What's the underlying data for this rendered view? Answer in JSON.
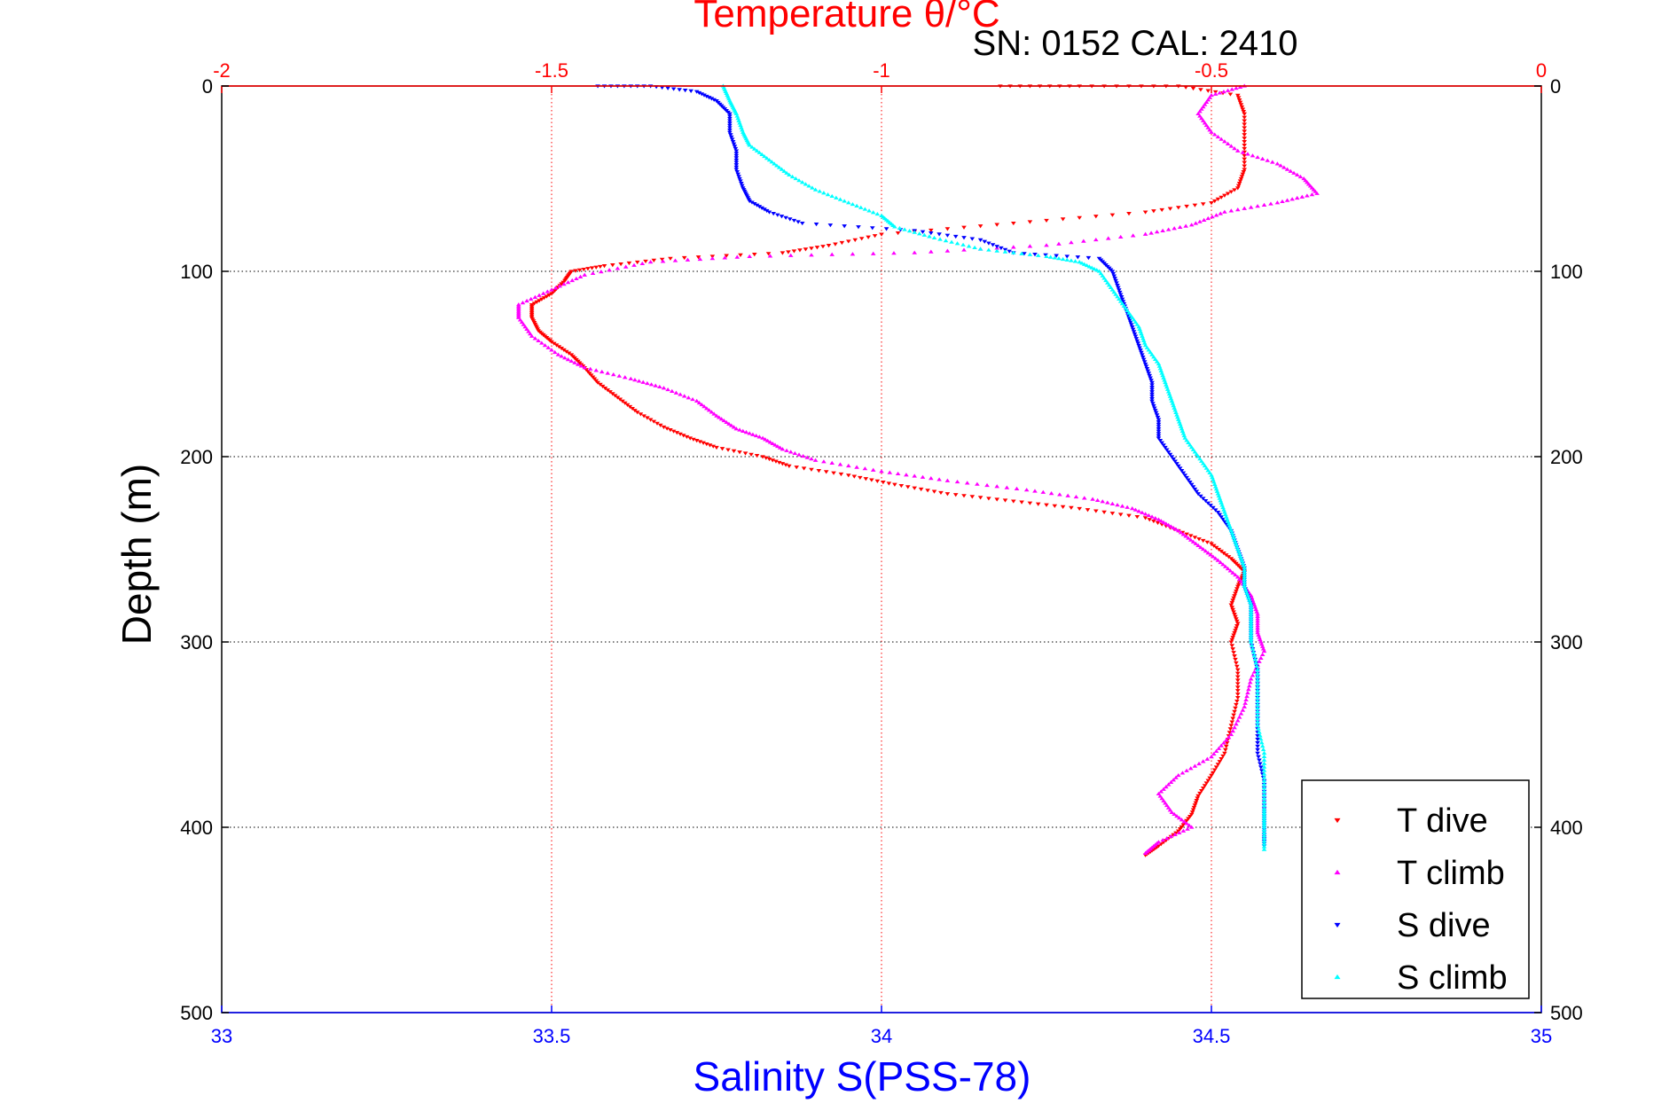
{
  "chart_data": {
    "type": "scatter",
    "title": "Temperature θ/°C",
    "subtitle": "SN: 0152  CAL: 2410",
    "xlabel": "Salinity S(PSS-78)",
    "ylabel": "Depth (m)",
    "x_bottom": {
      "label": "Salinity S(PSS-78)",
      "range": [
        33,
        35
      ],
      "ticks": [
        "33",
        "33.5",
        "34",
        "34.5",
        "35"
      ],
      "color": "#0000ff"
    },
    "x_top": {
      "label": "Temperature θ/°C",
      "range": [
        -2,
        0
      ],
      "ticks": [
        "-2",
        "-1.5",
        "-1",
        "-0.5",
        "0"
      ],
      "color": "#ff0000"
    },
    "y": {
      "label": "Depth (m)",
      "range": [
        0,
        500
      ],
      "reversed": true,
      "ticks": [
        "0",
        "100",
        "200",
        "300",
        "400",
        "500"
      ]
    },
    "grid": true,
    "legend_position": "bottom-right",
    "series": [
      {
        "name": "T dive",
        "axis": "top",
        "color": "#ff0000",
        "marker": "triangle-down",
        "points": [
          [
            -0.82,
            0
          ],
          [
            -0.7,
            0
          ],
          [
            -0.55,
            0
          ],
          [
            -0.46,
            5
          ],
          [
            -0.45,
            15
          ],
          [
            -0.45,
            30
          ],
          [
            -0.45,
            45
          ],
          [
            -0.46,
            55
          ],
          [
            -0.5,
            63
          ],
          [
            -0.6,
            68
          ],
          [
            -0.8,
            74
          ],
          [
            -1.0,
            80
          ],
          [
            -1.08,
            86
          ],
          [
            -1.15,
            90
          ],
          [
            -1.32,
            93
          ],
          [
            -1.42,
            97
          ],
          [
            -1.47,
            100
          ],
          [
            -1.48,
            105
          ],
          [
            -1.5,
            112
          ],
          [
            -1.53,
            118
          ],
          [
            -1.53,
            125
          ],
          [
            -1.52,
            132
          ],
          [
            -1.5,
            138
          ],
          [
            -1.47,
            145
          ],
          [
            -1.45,
            152
          ],
          [
            -1.43,
            160
          ],
          [
            -1.4,
            168
          ],
          [
            -1.37,
            176
          ],
          [
            -1.33,
            184
          ],
          [
            -1.29,
            190
          ],
          [
            -1.25,
            195
          ],
          [
            -1.18,
            200
          ],
          [
            -1.14,
            205
          ],
          [
            -1.05,
            210
          ],
          [
            -0.98,
            215
          ],
          [
            -0.9,
            220
          ],
          [
            -0.8,
            224
          ],
          [
            -0.7,
            228
          ],
          [
            -0.6,
            233
          ],
          [
            -0.55,
            240
          ],
          [
            -0.5,
            247
          ],
          [
            -0.47,
            255
          ],
          [
            -0.45,
            262
          ],
          [
            -0.46,
            270
          ],
          [
            -0.47,
            280
          ],
          [
            -0.46,
            290
          ],
          [
            -0.47,
            300
          ],
          [
            -0.46,
            315
          ],
          [
            -0.46,
            330
          ],
          [
            -0.47,
            345
          ],
          [
            -0.48,
            360
          ],
          [
            -0.5,
            372
          ],
          [
            -0.52,
            383
          ],
          [
            -0.53,
            393
          ],
          [
            -0.55,
            402
          ],
          [
            -0.58,
            410
          ],
          [
            -0.6,
            415
          ]
        ]
      },
      {
        "name": "T climb",
        "axis": "top",
        "color": "#ff00ff",
        "marker": "triangle-up",
        "points": [
          [
            -0.45,
            0
          ],
          [
            -0.5,
            5
          ],
          [
            -0.52,
            15
          ],
          [
            -0.5,
            25
          ],
          [
            -0.46,
            35
          ],
          [
            -0.4,
            42
          ],
          [
            -0.36,
            50
          ],
          [
            -0.34,
            58
          ],
          [
            -0.4,
            63
          ],
          [
            -0.48,
            68
          ],
          [
            -0.53,
            75
          ],
          [
            -0.6,
            80
          ],
          [
            -0.75,
            86
          ],
          [
            -0.95,
            90
          ],
          [
            -1.2,
            92
          ],
          [
            -1.35,
            95
          ],
          [
            -1.45,
            102
          ],
          [
            -1.5,
            110
          ],
          [
            -1.55,
            118
          ],
          [
            -1.55,
            125
          ],
          [
            -1.53,
            135
          ],
          [
            -1.49,
            145
          ],
          [
            -1.45,
            152
          ],
          [
            -1.38,
            158
          ],
          [
            -1.33,
            163
          ],
          [
            -1.28,
            170
          ],
          [
            -1.25,
            178
          ],
          [
            -1.22,
            185
          ],
          [
            -1.18,
            190
          ],
          [
            -1.15,
            196
          ],
          [
            -1.1,
            202
          ],
          [
            -1.0,
            208
          ],
          [
            -0.9,
            213
          ],
          [
            -0.78,
            218
          ],
          [
            -0.68,
            223
          ],
          [
            -0.62,
            228
          ],
          [
            -0.58,
            234
          ],
          [
            -0.55,
            240
          ],
          [
            -0.52,
            248
          ],
          [
            -0.49,
            256
          ],
          [
            -0.46,
            265
          ],
          [
            -0.44,
            275
          ],
          [
            -0.43,
            285
          ],
          [
            -0.43,
            295
          ],
          [
            -0.42,
            305
          ],
          [
            -0.44,
            320
          ],
          [
            -0.45,
            335
          ],
          [
            -0.47,
            350
          ],
          [
            -0.5,
            362
          ],
          [
            -0.55,
            372
          ],
          [
            -0.58,
            382
          ],
          [
            -0.56,
            392
          ],
          [
            -0.53,
            400
          ],
          [
            -0.58,
            408
          ],
          [
            -0.6,
            414
          ]
        ]
      },
      {
        "name": "S dive",
        "axis": "bottom",
        "color": "#0000ff",
        "marker": "triangle-down",
        "points": [
          [
            33.57,
            0
          ],
          [
            33.65,
            0
          ],
          [
            33.72,
            3
          ],
          [
            33.75,
            8
          ],
          [
            33.77,
            15
          ],
          [
            33.77,
            25
          ],
          [
            33.78,
            35
          ],
          [
            33.78,
            45
          ],
          [
            33.79,
            55
          ],
          [
            33.8,
            62
          ],
          [
            33.83,
            68
          ],
          [
            33.88,
            74
          ],
          [
            34.05,
            78
          ],
          [
            34.15,
            83
          ],
          [
            34.2,
            90
          ],
          [
            34.33,
            93
          ],
          [
            34.35,
            100
          ],
          [
            34.36,
            110
          ],
          [
            34.37,
            120
          ],
          [
            34.38,
            130
          ],
          [
            34.39,
            140
          ],
          [
            34.4,
            150
          ],
          [
            34.41,
            160
          ],
          [
            34.41,
            170
          ],
          [
            34.42,
            180
          ],
          [
            34.42,
            190
          ],
          [
            34.44,
            200
          ],
          [
            34.46,
            210
          ],
          [
            34.48,
            220
          ],
          [
            34.51,
            230
          ],
          [
            34.53,
            240
          ],
          [
            34.54,
            250
          ],
          [
            34.55,
            260
          ],
          [
            34.55,
            270
          ],
          [
            34.56,
            280
          ],
          [
            34.56,
            290
          ],
          [
            34.56,
            300
          ],
          [
            34.57,
            315
          ],
          [
            34.57,
            330
          ],
          [
            34.57,
            345
          ],
          [
            34.57,
            360
          ],
          [
            34.58,
            375
          ],
          [
            34.58,
            390
          ],
          [
            34.58,
            400
          ],
          [
            34.58,
            410
          ]
        ]
      },
      {
        "name": "S climb",
        "axis": "bottom",
        "color": "#00ffff",
        "marker": "triangle-up",
        "points": [
          [
            33.76,
            0
          ],
          [
            33.77,
            8
          ],
          [
            33.78,
            15
          ],
          [
            33.79,
            25
          ],
          [
            33.8,
            32
          ],
          [
            33.83,
            40
          ],
          [
            33.86,
            48
          ],
          [
            33.9,
            56
          ],
          [
            33.95,
            63
          ],
          [
            34.0,
            70
          ],
          [
            34.02,
            76
          ],
          [
            34.08,
            82
          ],
          [
            34.15,
            88
          ],
          [
            34.25,
            92
          ],
          [
            34.3,
            95
          ],
          [
            34.33,
            100
          ],
          [
            34.35,
            110
          ],
          [
            34.37,
            120
          ],
          [
            34.39,
            130
          ],
          [
            34.4,
            140
          ],
          [
            34.42,
            150
          ],
          [
            34.43,
            160
          ],
          [
            34.44,
            170
          ],
          [
            34.45,
            180
          ],
          [
            34.46,
            190
          ],
          [
            34.48,
            200
          ],
          [
            34.5,
            210
          ],
          [
            34.51,
            220
          ],
          [
            34.52,
            230
          ],
          [
            34.53,
            240
          ],
          [
            34.54,
            250
          ],
          [
            34.55,
            260
          ],
          [
            34.55,
            270
          ],
          [
            34.56,
            280
          ],
          [
            34.56,
            290
          ],
          [
            34.56,
            300
          ],
          [
            34.57,
            315
          ],
          [
            34.57,
            330
          ],
          [
            34.57,
            345
          ],
          [
            34.58,
            360
          ],
          [
            34.58,
            375
          ],
          [
            34.58,
            390
          ],
          [
            34.58,
            400
          ],
          [
            34.58,
            412
          ]
        ]
      }
    ]
  }
}
